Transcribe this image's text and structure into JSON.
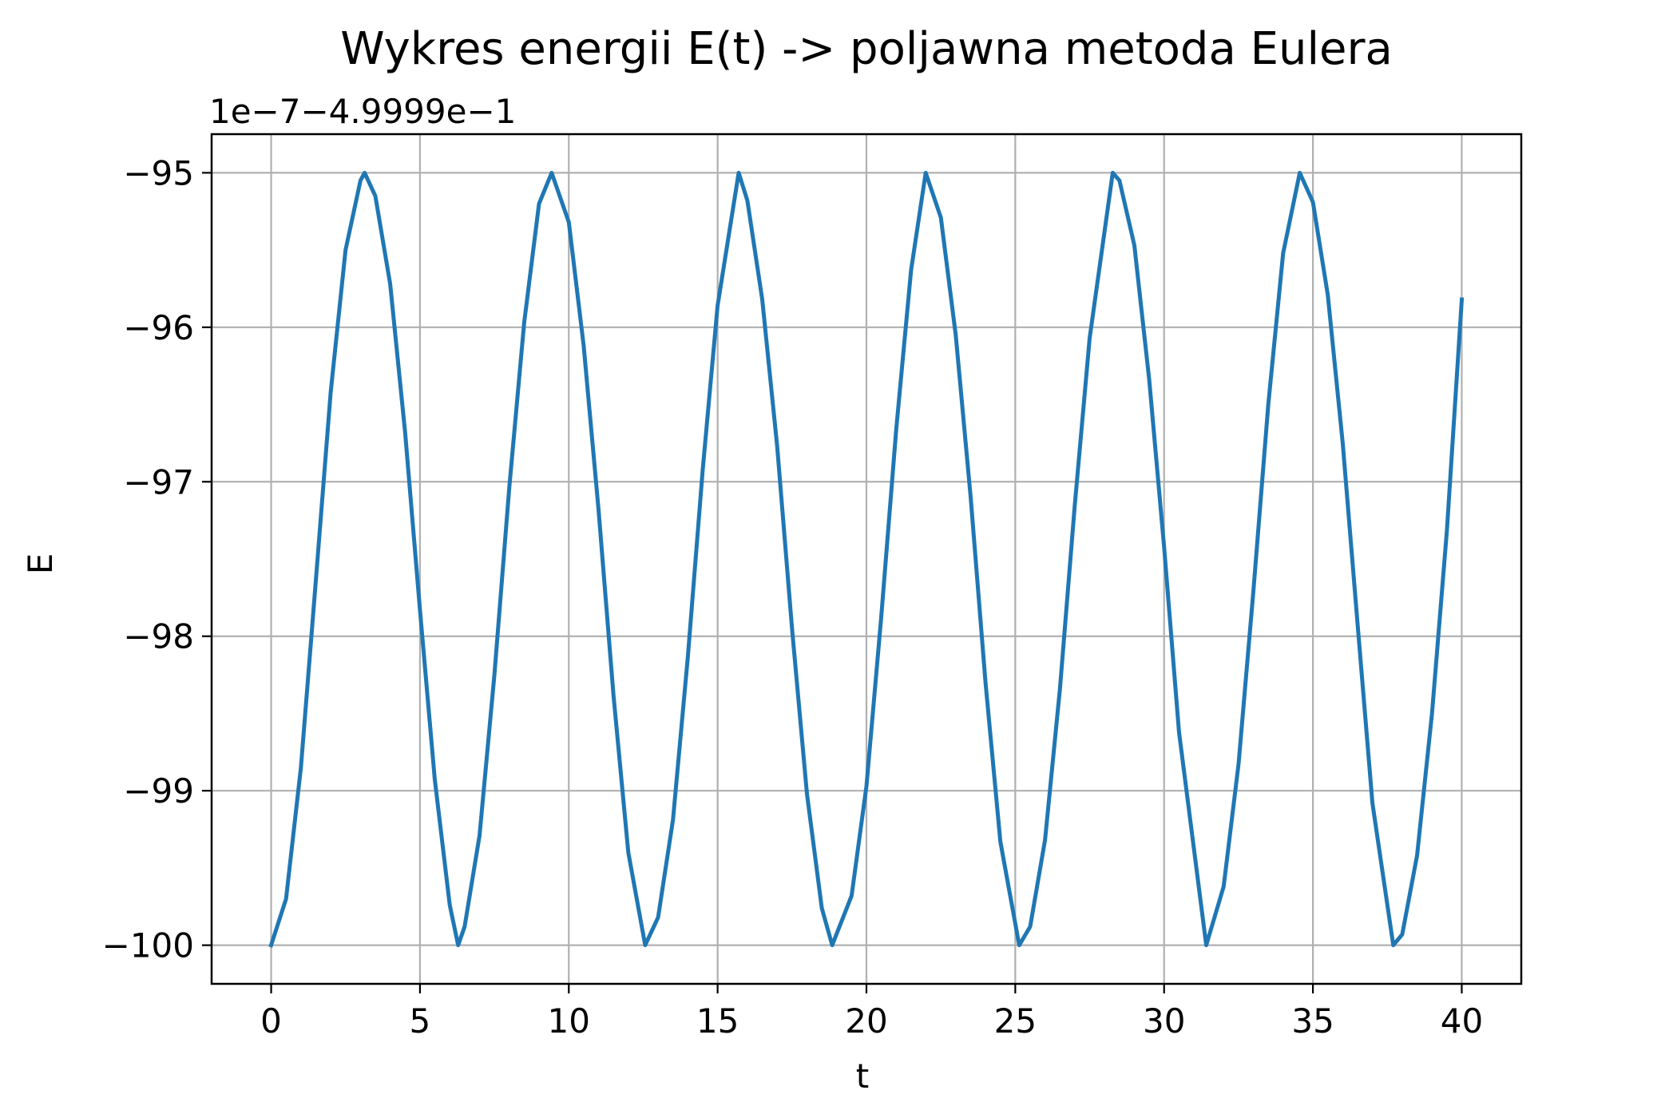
{
  "chart_data": {
    "type": "line",
    "title": "Wykres energii E(t) -> poljawna metoda Eulera",
    "xlabel": "t",
    "ylabel": "E",
    "offset_label": "1e−7−4.9999e−1",
    "xlim": [
      -2,
      42
    ],
    "ylim": [
      -100.25,
      -94.75
    ],
    "xticks": [
      0,
      5,
      10,
      15,
      20,
      25,
      30,
      35,
      40
    ],
    "xtick_labels": [
      "0",
      "5",
      "10",
      "15",
      "20",
      "25",
      "30",
      "35",
      "40"
    ],
    "yticks": [
      -95,
      -96,
      -97,
      -98,
      -99,
      -100
    ],
    "ytick_labels": [
      "−95",
      "−96",
      "−97",
      "−98",
      "−99",
      "−100"
    ],
    "grid": true,
    "series": [
      {
        "color": "#1f77b4",
        "x": [
          0,
          0.5,
          1,
          1.5,
          2,
          2.5,
          3,
          3.1416,
          3.5,
          4,
          4.5,
          5,
          5.5,
          6,
          6.2832,
          6.5,
          7,
          7.5,
          8,
          8.5,
          9,
          9.4248,
          10,
          10.5,
          11,
          11.5,
          12,
          12.5664,
          13,
          13.5,
          14,
          14.5,
          15,
          15.708,
          16,
          16.5,
          17,
          17.5,
          18,
          18.5,
          18.8496,
          19.5,
          20,
          20.5,
          21,
          21.5,
          21.9911,
          22.5,
          23,
          23.5,
          24,
          24.5,
          25.1327,
          25.5,
          26,
          26.5,
          27,
          27.5,
          28.2743,
          28.5,
          29,
          29.5,
          30,
          30.5,
          31.4159,
          32,
          32.5,
          33,
          33.5,
          34,
          34.5575,
          35,
          35.5,
          36,
          36.5,
          37,
          37.6991,
          38,
          38.5,
          39,
          39.5,
          40
        ],
        "y": [
          -100,
          -99.7,
          -98.85,
          -97.64,
          -96.42,
          -95.5,
          -95.05,
          -95,
          -95.15,
          -95.72,
          -96.68,
          -97.83,
          -98.93,
          -99.74,
          -100,
          -99.88,
          -99.29,
          -98.25,
          -97.04,
          -95.97,
          -95.2,
          -95,
          -95.32,
          -96.12,
          -97.18,
          -98.38,
          -99.4,
          -100,
          -99.82,
          -99.19,
          -98.13,
          -96.92,
          -95.86,
          -95,
          -95.18,
          -95.82,
          -96.77,
          -97.95,
          -99.02,
          -99.76,
          -100,
          -99.68,
          -98.97,
          -97.87,
          -96.66,
          -95.63,
          -95,
          -95.29,
          -96.05,
          -97.1,
          -98.3,
          -99.33,
          -100,
          -99.88,
          -99.32,
          -98.34,
          -97.15,
          -96.07,
          -95,
          -95.05,
          -95.47,
          -96.34,
          -97.42,
          -98.62,
          -100,
          -99.62,
          -98.83,
          -97.71,
          -96.5,
          -95.52,
          -95,
          -95.19,
          -95.79,
          -96.75,
          -97.92,
          -99.08,
          -100,
          -99.93,
          -99.42,
          -98.5,
          -97.32,
          -95.82
        ]
      }
    ]
  }
}
